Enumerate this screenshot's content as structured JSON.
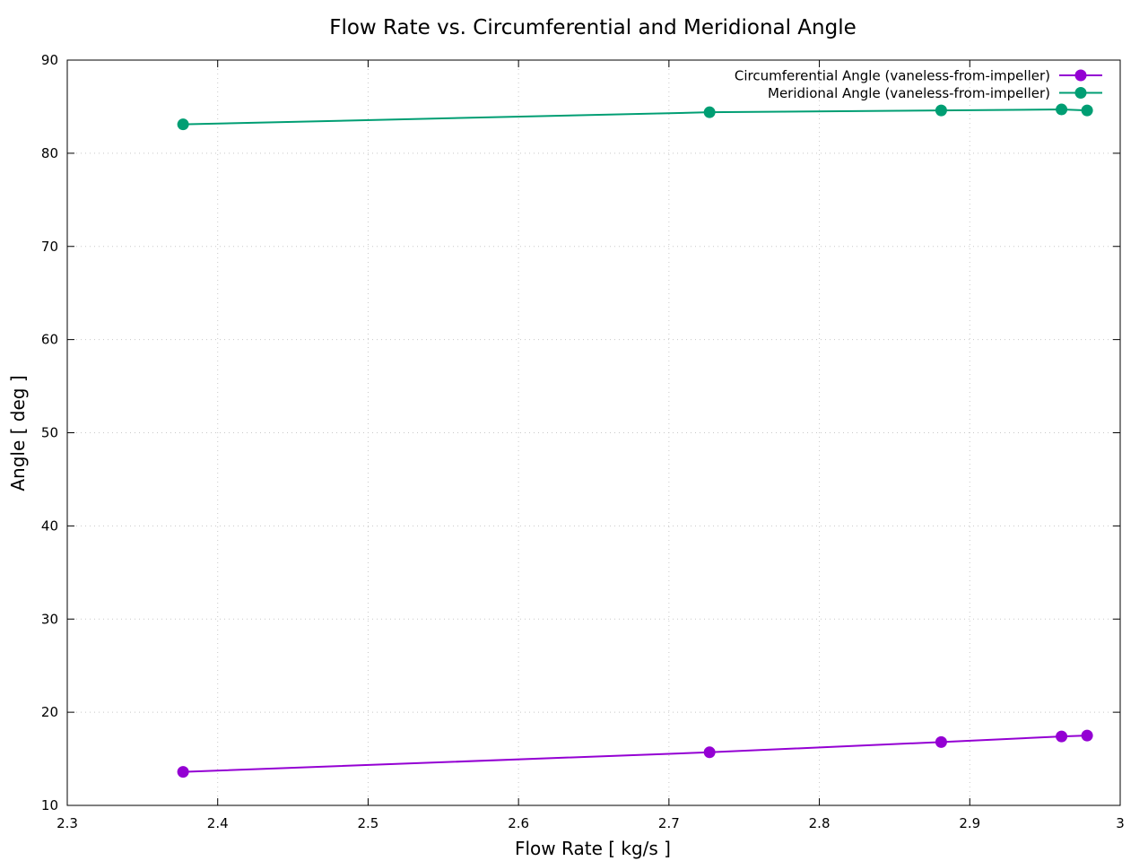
{
  "chart_data": {
    "type": "line",
    "title": "Flow Rate vs. Circumferential and Meridional Angle",
    "xlabel": "Flow Rate [ kg/s ]",
    "ylabel": "Angle [ deg ]",
    "xlim": [
      2.3,
      3.0
    ],
    "ylim": [
      10,
      90
    ],
    "xticks": [
      2.3,
      2.4,
      2.5,
      2.6,
      2.7,
      2.8,
      2.9,
      3.0
    ],
    "xtick_labels": [
      "2.3",
      "2.4",
      "2.5",
      "2.6",
      "2.7",
      "2.8",
      "2.9",
      "3"
    ],
    "yticks": [
      10,
      20,
      30,
      40,
      50,
      60,
      70,
      80,
      90
    ],
    "ytick_labels": [
      "10",
      "20",
      "30",
      "40",
      "50",
      "60",
      "70",
      "80",
      "90"
    ],
    "grid": true,
    "legend_position": "top-right",
    "x": [
      2.377,
      2.727,
      2.881,
      2.961,
      2.978
    ],
    "series": [
      {
        "name": "Circumferential Angle (vaneless-from-impeller)",
        "color": "#9400d3",
        "marker": "circle",
        "values": [
          13.6,
          15.7,
          16.8,
          17.4,
          17.5
        ]
      },
      {
        "name": "Meridional Angle (vaneless-from-impeller)",
        "color": "#009e73",
        "marker": "circle",
        "values": [
          83.1,
          84.4,
          84.6,
          84.7,
          84.6
        ]
      }
    ]
  }
}
